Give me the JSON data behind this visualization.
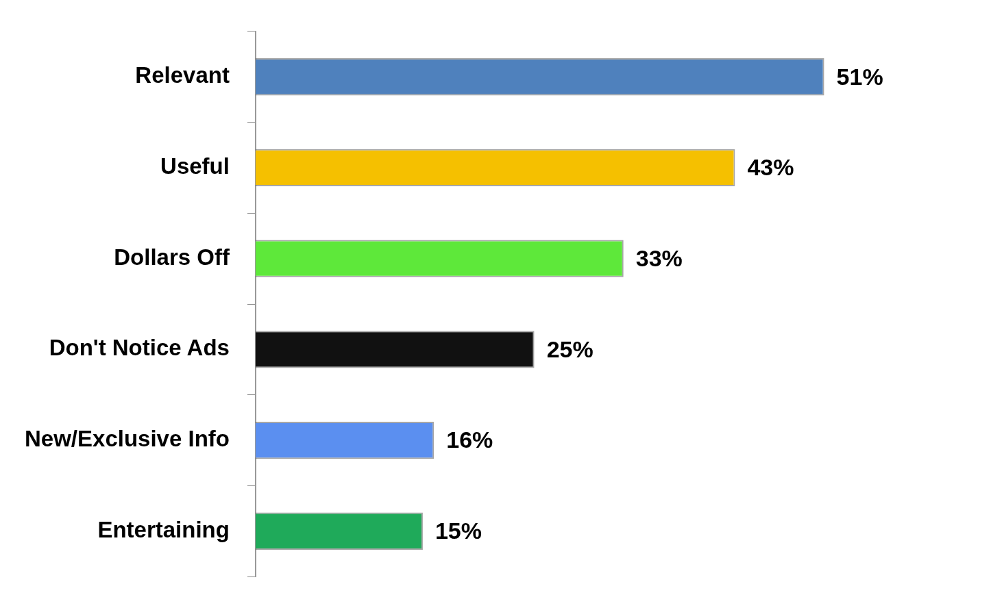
{
  "chart_data": {
    "type": "bar",
    "orientation": "horizontal",
    "categories": [
      "Relevant",
      "Useful",
      "Dollars Off",
      "Don't Notice Ads",
      "New/Exclusive Info",
      "Entertaining"
    ],
    "values": [
      51,
      43,
      33,
      25,
      16,
      15
    ],
    "colors": [
      "#4f81bd",
      "#f5c000",
      "#5ee83a",
      "#111111",
      "#5b8ff0",
      "#1faa5a"
    ],
    "value_labels": [
      "51%",
      "43%",
      "33%",
      "25%",
      "16%",
      "15%"
    ],
    "legend": false
  }
}
